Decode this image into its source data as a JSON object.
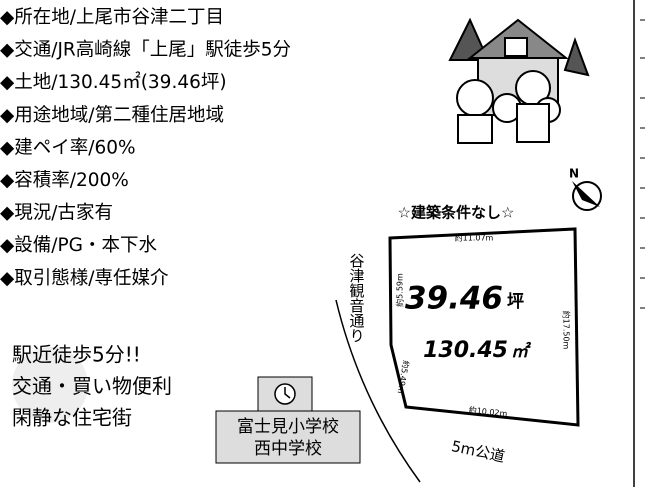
{
  "details": [
    "◆所在地/上尾市谷津二丁目",
    "◆交通/JR高崎線「上尾」駅徒歩5分",
    "◆土地/130.45㎡(39.46坪)",
    "◆用途地域/第二種住居地域",
    "◆建ペイ率/60%",
    "◆容積率/200%",
    "◆現況/古家有",
    "◆設備/PG・本下水",
    "◆取引態様/専任媒介"
  ],
  "highlights": [
    "駅近徒歩5分!!",
    "交通・買い物便利",
    "閑静な住宅街"
  ],
  "schools": [
    "富士見小学校",
    "西中学校"
  ],
  "banner": "☆建築条件なし☆",
  "compass": "N",
  "side_road": "谷津観音通り",
  "front_road": "5m公道",
  "plot": {
    "tsubo": "39.46",
    "tsubo_unit": "坪",
    "sqm": "130.45",
    "sqm_unit": "㎡",
    "dimensions": {
      "top": "約11.07m",
      "left_upper": "約5.59m",
      "right": "約17.50m",
      "left_lower": "約5.49m",
      "bottom": "約10.02m"
    }
  }
}
